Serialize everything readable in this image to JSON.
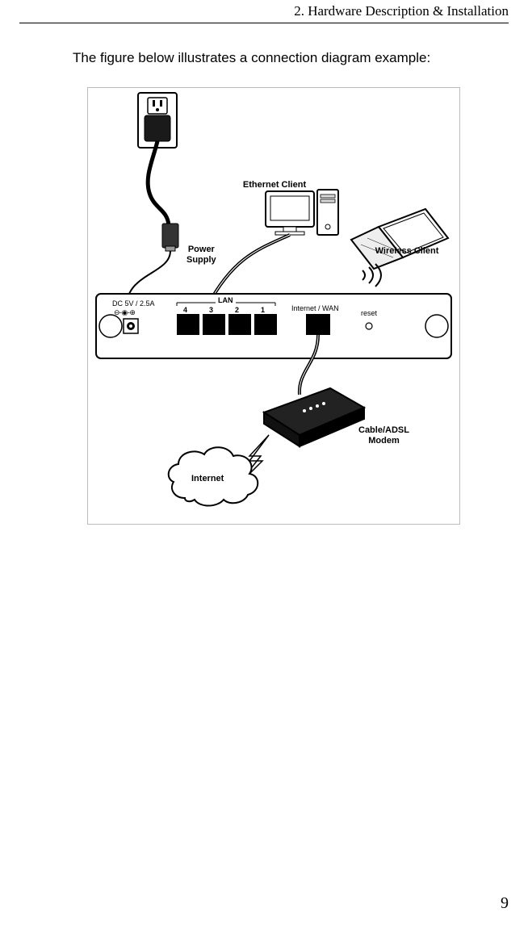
{
  "header": {
    "title": "2. Hardware Description & Installation"
  },
  "intro": "The figure below illustrates a connection diagram example:",
  "pageNumber": "9",
  "diagram": {
    "labels": {
      "ethernetClient": "Ethernet Client",
      "wirelessClient": "Wireless Client",
      "powerSupply": "Power\nSupply",
      "modem": "Cable/ADSL\nModem",
      "internet": "Internet",
      "lan": "LAN",
      "wan": "Internet / WAN",
      "dc": "DC 5V / 2.5A",
      "reset": "reset"
    },
    "ports": [
      "4",
      "3",
      "2",
      "1"
    ],
    "connector_symbol": "⊖-◉-⊕",
    "colors": {
      "stroke": "#000000",
      "fill_white": "#ffffff",
      "fill_black": "#000000",
      "light_gray": "#cfcfcf",
      "mid_gray": "#9a9a9a"
    },
    "style": {
      "label_fontsize": 11,
      "small_fontsize": 9,
      "line_width_thin": 1,
      "line_width_med": 2
    }
  }
}
